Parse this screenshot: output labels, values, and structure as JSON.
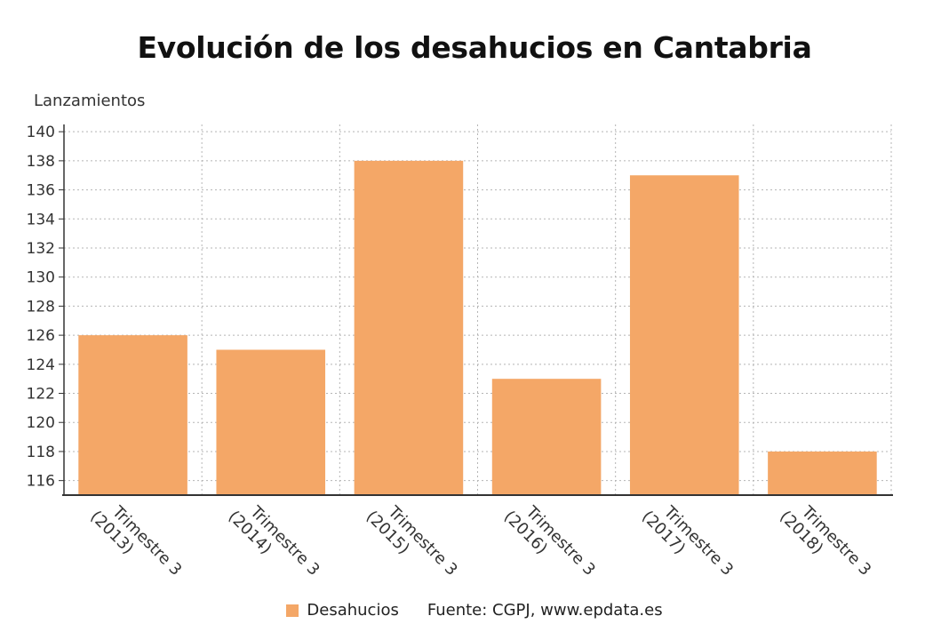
{
  "chart_data": {
    "type": "bar",
    "title": "Evolución de los desahucios en Cantabria",
    "ylabel": "Lanzamientos",
    "xlabel": "",
    "categories": [
      [
        "Trimestre 3",
        "(2013)"
      ],
      [
        "Trimestre 3",
        "(2014)"
      ],
      [
        "Trimestre 3",
        "(2015)"
      ],
      [
        "Trimestre 3",
        "(2016)"
      ],
      [
        "Trimestre 3",
        "(2017)"
      ],
      [
        "Trimestre 3",
        "(2018)"
      ]
    ],
    "series": [
      {
        "name": "Desahucios",
        "values": [
          126,
          125,
          138,
          123,
          137,
          118
        ],
        "color": "#f4a767"
      }
    ],
    "ylim": [
      115,
      140.5
    ],
    "yticks": [
      116,
      118,
      120,
      122,
      124,
      126,
      128,
      130,
      132,
      134,
      136,
      138,
      140
    ],
    "grid": true,
    "legend_position": "bottom-center"
  },
  "legend": {
    "series_label": "Desahucios",
    "source": "Fuente: CGPJ, www.epdata.es"
  },
  "colors": {
    "bar": "#f4a767",
    "grid": "#b5b5b5",
    "axis": "#333333"
  }
}
